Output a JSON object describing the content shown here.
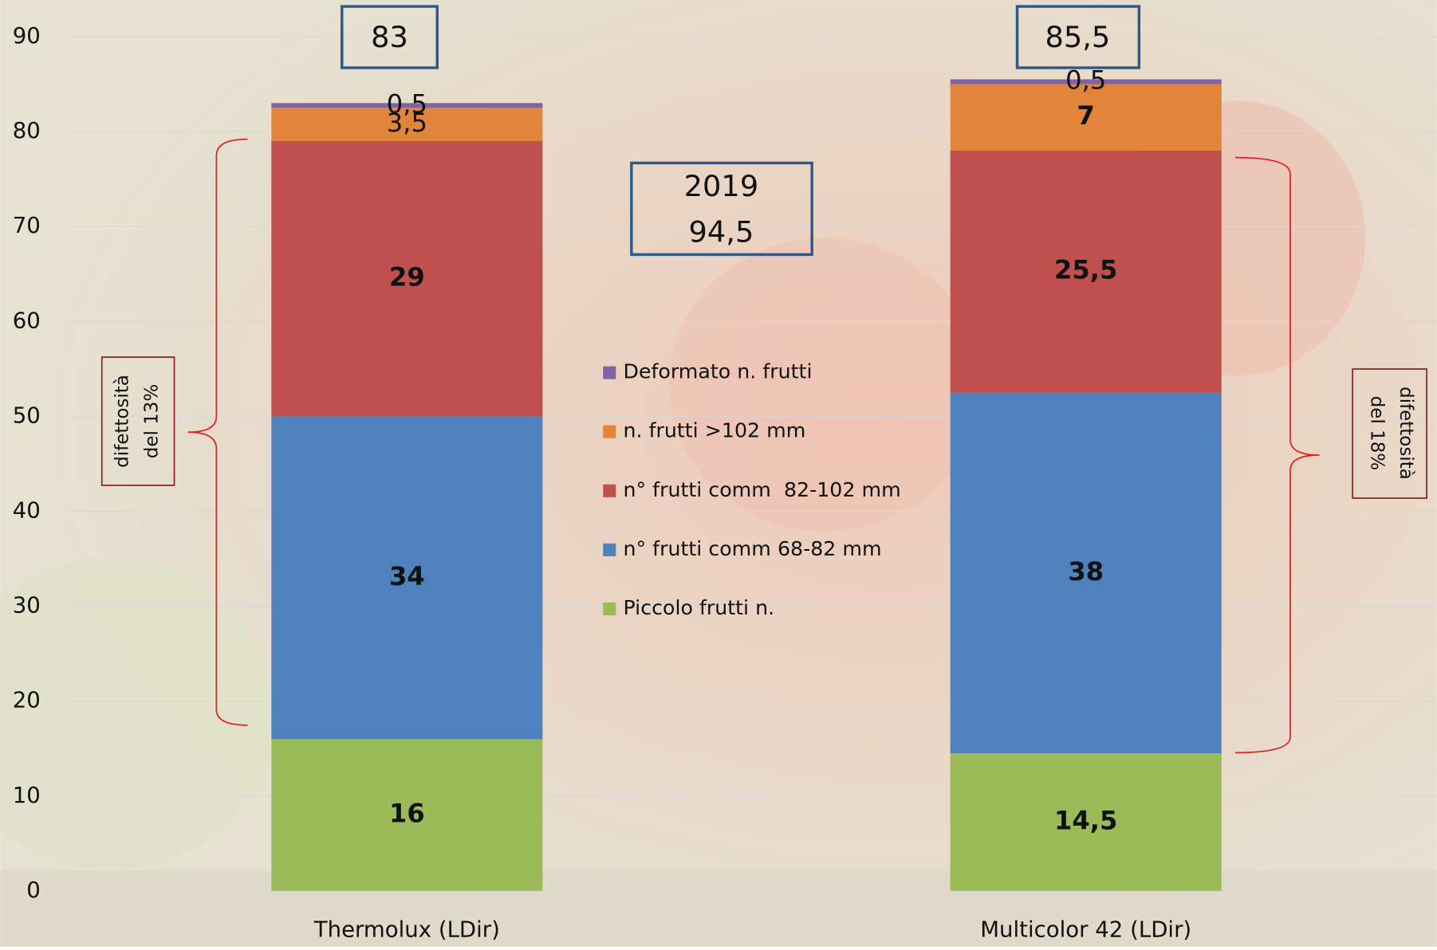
{
  "chart_data": {
    "type": "stacked_bar",
    "categories": [
      "Thermolux (LDir)",
      "Multicolor 42 (LDir)"
    ],
    "series": [
      {
        "name": "Piccolo frutti n.",
        "color": "#9bbb59",
        "values": [
          16,
          14.5
        ],
        "value_labels": [
          "16",
          "14,5"
        ]
      },
      {
        "name": "n° frutti comm 68-82 mm",
        "color": "#4f81bd",
        "values": [
          34,
          38
        ],
        "value_labels": [
          "34",
          "38"
        ]
      },
      {
        "name": "n° frutti comm  82-102 mm",
        "color": "#c0504d",
        "values": [
          29,
          25.5
        ],
        "value_labels": [
          "29",
          "25,5"
        ]
      },
      {
        "name": "n. frutti >102 mm",
        "color": "#e0853a",
        "values": [
          3.5,
          7
        ],
        "value_labels": [
          "3,5",
          "7"
        ]
      },
      {
        "name": "Deformato n. frutti",
        "color": "#8064a2",
        "values": [
          0.5,
          0.5
        ],
        "value_labels": [
          "0,5",
          "0,5"
        ]
      }
    ],
    "ylim": [
      0,
      90
    ],
    "yticks": [
      0,
      10,
      20,
      30,
      40,
      50,
      60,
      70,
      80,
      90
    ],
    "grid": true,
    "totals": [
      "83",
      "85,5"
    ],
    "year_box": [
      "2019",
      "94,5"
    ],
    "annotations": [
      [
        "difettosità",
        "del 13%"
      ],
      [
        "difettosità",
        "del 18%"
      ]
    ]
  }
}
